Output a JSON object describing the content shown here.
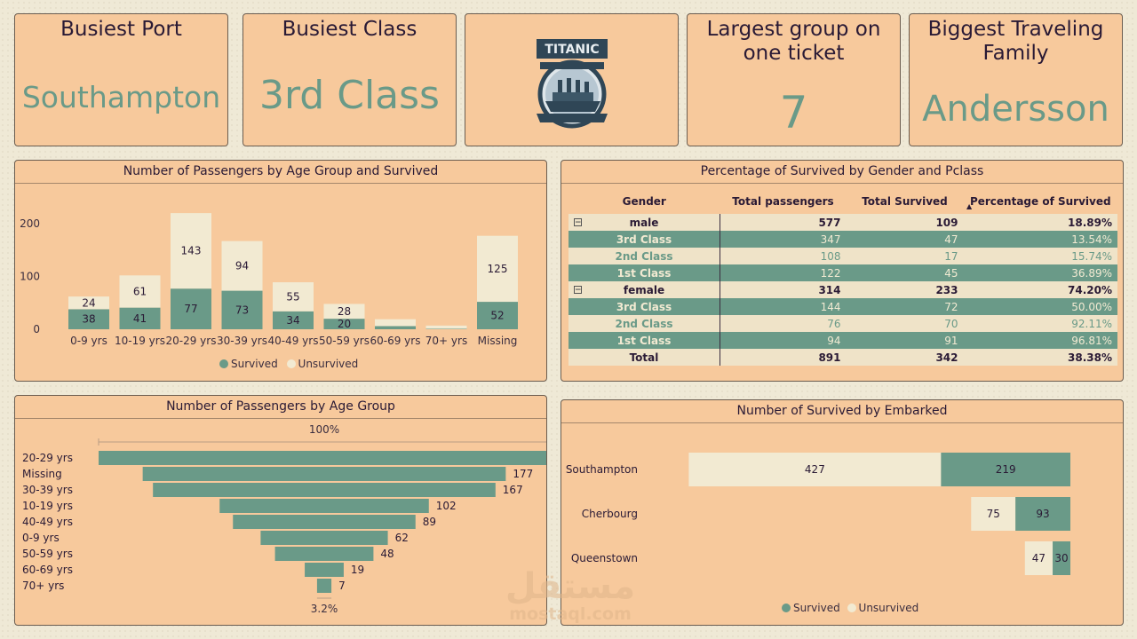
{
  "kpis": [
    {
      "title": "Busiest Port",
      "value": "Southampton"
    },
    {
      "title": "Busiest Class",
      "value": "3rd Class"
    },
    {
      "title": "Largest group on one ticket",
      "value": "7"
    },
    {
      "title": "Biggest Traveling Family",
      "value": "Andersson"
    }
  ],
  "logo": {
    "text": "TITANIC",
    "icon": "titanic-ship-logo"
  },
  "colors": {
    "survived": "#6a9a88",
    "unsurvived": "#f2ead2",
    "panel": "#f7c99c",
    "text": "#2a1a35"
  },
  "chart_data": [
    {
      "type": "bar",
      "title": "Number of Passengers by Age Group and Survived",
      "stacked": true,
      "categories": [
        "0-9 yrs",
        "10-19 yrs",
        "20-29 yrs",
        "30-39 yrs",
        "40-49 yrs",
        "50-59 yrs",
        "60-69 yrs",
        "70+ yrs",
        "Missing"
      ],
      "series": [
        {
          "name": "Survived",
          "values": [
            38,
            41,
            77,
            73,
            34,
            20,
            6,
            1,
            52
          ]
        },
        {
          "name": "Unsurvived",
          "values": [
            24,
            61,
            143,
            94,
            55,
            28,
            13,
            6,
            125
          ]
        }
      ],
      "yticks": [
        "0",
        "100",
        "200"
      ],
      "ylim": [
        0,
        230
      ],
      "legend": "bottom"
    },
    {
      "type": "bar",
      "orientation": "funnel",
      "title": "Number of Passengers by Age Group",
      "categories": [
        "20-29 yrs",
        "Missing",
        "30-39 yrs",
        "10-19 yrs",
        "40-49 yrs",
        "0-9 yrs",
        "50-59 yrs",
        "60-69 yrs",
        "70+ yrs"
      ],
      "values": [
        220,
        177,
        167,
        102,
        89,
        62,
        48,
        19,
        7
      ],
      "top_label": "100%",
      "bottom_label": "3.2%"
    },
    {
      "type": "bar",
      "orientation": "horizontal",
      "title": "Number of Survived by Embarked",
      "stacked": true,
      "categories": [
        "Southampton",
        "Cherbourg",
        "Queenstown"
      ],
      "series": [
        {
          "name": "Unsurvived",
          "values": [
            427,
            75,
            47
          ]
        },
        {
          "name": "Survived",
          "values": [
            219,
            93,
            30
          ]
        }
      ],
      "legend": "bottom"
    },
    {
      "type": "table",
      "title": "Percentage of Survived by Gender and Pclass",
      "columns": [
        "Gender",
        "Total passengers",
        "Total Survived",
        "Percentage of Survived"
      ],
      "rows": [
        {
          "kind": "group",
          "label": "male",
          "total": "577",
          "survived": "109",
          "pct": "18.89%"
        },
        {
          "kind": "sub-g",
          "label": "3rd Class",
          "total": "347",
          "survived": "47",
          "pct": "13.54%"
        },
        {
          "kind": "sub-c",
          "label": "2nd Class",
          "total": "108",
          "survived": "17",
          "pct": "15.74%"
        },
        {
          "kind": "sub-g",
          "label": "1st Class",
          "total": "122",
          "survived": "45",
          "pct": "36.89%"
        },
        {
          "kind": "group",
          "label": "female",
          "total": "314",
          "survived": "233",
          "pct": "74.20%"
        },
        {
          "kind": "sub-g",
          "label": "3rd Class",
          "total": "144",
          "survived": "72",
          "pct": "50.00%"
        },
        {
          "kind": "sub-c",
          "label": "2nd Class",
          "total": "76",
          "survived": "70",
          "pct": "92.11%"
        },
        {
          "kind": "sub-g",
          "label": "1st Class",
          "total": "94",
          "survived": "91",
          "pct": "96.81%"
        },
        {
          "kind": "tot",
          "label": "Total",
          "total": "891",
          "survived": "342",
          "pct": "38.38%"
        }
      ]
    }
  ],
  "legend": {
    "survived": "Survived",
    "unsurvived": "Unsurvived"
  },
  "watermark": {
    "text_ar": "مستقل",
    "text_en": "mostaql.com"
  }
}
